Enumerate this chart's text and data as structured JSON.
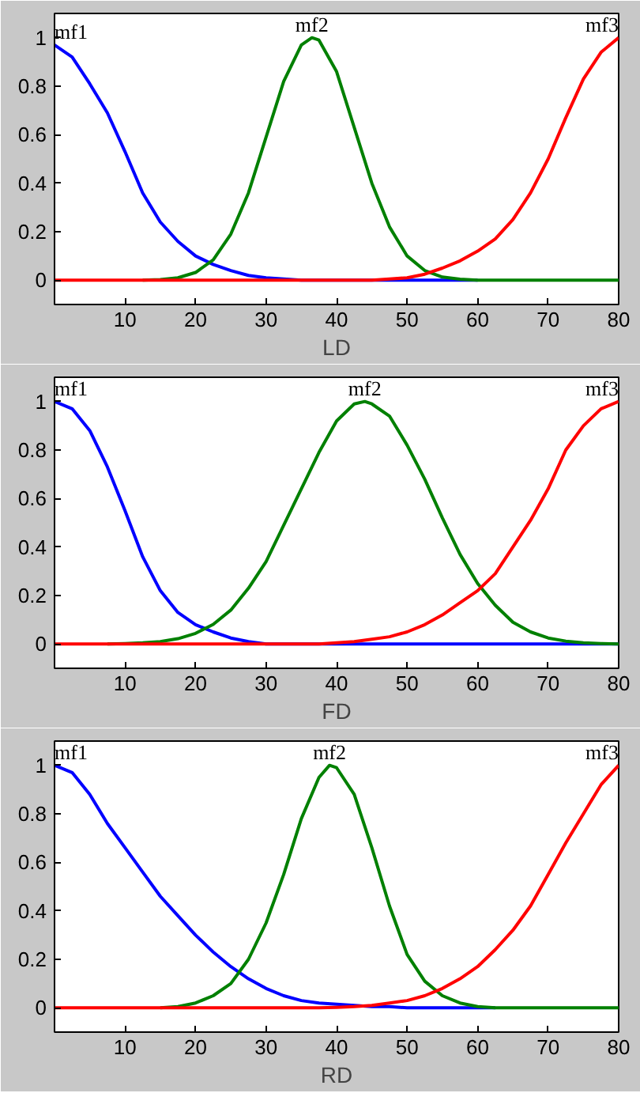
{
  "chart_data": [
    {
      "type": "line",
      "xlabel": "LD",
      "x": [
        0,
        2.5,
        5,
        7.5,
        10,
        12.5,
        15,
        17.5,
        20,
        22.5,
        25,
        27.5,
        30,
        32.5,
        35,
        37.5,
        40,
        42.5,
        45,
        47.5,
        50,
        52.5,
        55,
        57.5,
        60,
        62.5,
        65,
        67.5,
        70,
        72.5,
        75,
        77.5,
        80
      ],
      "xlim": [
        0,
        80
      ],
      "ylim": [
        -0.1,
        1.1
      ],
      "xticks": [
        10,
        20,
        30,
        40,
        50,
        60,
        70,
        80
      ],
      "yticks": [
        0,
        0.2,
        0.4,
        0.6,
        0.8,
        1
      ],
      "grid": false,
      "legend": false,
      "series": [
        {
          "name": "mf1",
          "color": "#0000ff",
          "values": [
            0.97,
            0.92,
            0.81,
            0.69,
            0.53,
            0.36,
            0.24,
            0.16,
            0.1,
            0.065,
            0.04,
            0.02,
            0.01,
            0.005,
            0,
            0,
            0,
            0,
            0,
            0,
            0,
            0,
            0,
            0,
            0,
            null,
            null,
            null,
            null,
            null,
            null,
            null,
            null
          ]
        },
        {
          "name": "mf2",
          "color": "#008000",
          "x": [
            12.5,
            15,
            17.5,
            20,
            22.5,
            25,
            27.5,
            30,
            32.5,
            35,
            36.5,
            37.5,
            40,
            42.5,
            45,
            47.5,
            50,
            52.5,
            55,
            57.5,
            60,
            62.5,
            65,
            67.5,
            70,
            72.5,
            75,
            77.5,
            80
          ],
          "values": [
            0,
            0.003,
            0.01,
            0.032,
            0.084,
            0.19,
            0.36,
            0.59,
            0.82,
            0.97,
            1,
            0.99,
            0.86,
            0.63,
            0.4,
            0.22,
            0.1,
            0.04,
            0.013,
            0.004,
            0,
            0,
            0,
            0,
            0,
            0,
            0,
            0,
            0
          ]
        },
        {
          "name": "mf3",
          "color": "#ff0000",
          "values": [
            0,
            0,
            0,
            0,
            0,
            0,
            0,
            0,
            0,
            0,
            0,
            0,
            0,
            0,
            0,
            0,
            0,
            0,
            0,
            0.005,
            0.01,
            0.025,
            0.05,
            0.08,
            0.12,
            0.17,
            0.25,
            0.36,
            0.5,
            0.67,
            0.83,
            0.94,
            1.0
          ]
        }
      ]
    },
    {
      "type": "line",
      "xlabel": "FD",
      "x": [
        0,
        2.5,
        5,
        7.5,
        10,
        12.5,
        15,
        17.5,
        20,
        22.5,
        25,
        27.5,
        30,
        32.5,
        35,
        37.5,
        40,
        42.5,
        45,
        47.5,
        50,
        52.5,
        55,
        57.5,
        60,
        62.5,
        65,
        67.5,
        70,
        72.5,
        75,
        77.5,
        80
      ],
      "xlim": [
        0,
        80
      ],
      "ylim": [
        -0.1,
        1.1
      ],
      "xticks": [
        10,
        20,
        30,
        40,
        50,
        60,
        70,
        80
      ],
      "yticks": [
        0,
        0.2,
        0.4,
        0.6,
        0.8,
        1
      ],
      "grid": false,
      "legend": false,
      "series": [
        {
          "name": "mf1",
          "color": "#0000ff",
          "values": [
            1.0,
            0.97,
            0.88,
            0.73,
            0.55,
            0.36,
            0.22,
            0.13,
            0.08,
            0.05,
            0.025,
            0.01,
            0,
            0,
            0,
            0,
            0,
            0,
            0,
            0,
            0,
            0,
            0,
            0,
            0,
            0,
            0,
            0,
            0,
            0,
            0,
            0,
            0
          ]
        },
        {
          "name": "mf2",
          "color": "#008000",
          "x": [
            7.5,
            10,
            12.5,
            15,
            17.5,
            20,
            22.5,
            25,
            27.5,
            30,
            32.5,
            35,
            37.5,
            40,
            42.5,
            44,
            45,
            47.5,
            50,
            52.5,
            55,
            57.5,
            60,
            62.5,
            65,
            67.5,
            70,
            72.5,
            75,
            77.5,
            80
          ],
          "values": [
            0,
            0.002,
            0.005,
            0.01,
            0.022,
            0.044,
            0.081,
            0.14,
            0.23,
            0.34,
            0.49,
            0.64,
            0.79,
            0.92,
            0.99,
            1.0,
            0.99,
            0.94,
            0.82,
            0.68,
            0.52,
            0.37,
            0.25,
            0.16,
            0.09,
            0.05,
            0.025,
            0.012,
            0.005,
            0.002,
            0
          ]
        },
        {
          "name": "mf3",
          "color": "#ff0000",
          "values": [
            0,
            0,
            0,
            0,
            0,
            0,
            0,
            0,
            0,
            0,
            0,
            0,
            0,
            0,
            0,
            0,
            0.005,
            0.01,
            0.02,
            0.03,
            0.05,
            0.08,
            0.12,
            0.17,
            0.22,
            0.29,
            0.4,
            0.51,
            0.64,
            0.8,
            0.9,
            0.97,
            1.0
          ]
        }
      ]
    },
    {
      "type": "line",
      "xlabel": "RD",
      "x": [
        0,
        2.5,
        5,
        7.5,
        10,
        12.5,
        15,
        17.5,
        20,
        22.5,
        25,
        27.5,
        30,
        32.5,
        35,
        37.5,
        40,
        42.5,
        45,
        47.5,
        50,
        52.5,
        55,
        57.5,
        60,
        62.5,
        65,
        67.5,
        70,
        72.5,
        75,
        77.5,
        80
      ],
      "xlim": [
        0,
        80
      ],
      "ylim": [
        -0.1,
        1.1
      ],
      "xticks": [
        10,
        20,
        30,
        40,
        50,
        60,
        70,
        80
      ],
      "yticks": [
        0,
        0.2,
        0.4,
        0.6,
        0.8,
        1
      ],
      "grid": false,
      "legend": false,
      "series": [
        {
          "name": "mf1",
          "color": "#0000ff",
          "values": [
            1.0,
            0.97,
            0.88,
            0.76,
            0.66,
            0.56,
            0.46,
            0.38,
            0.3,
            0.23,
            0.17,
            0.12,
            0.08,
            0.05,
            0.03,
            0.02,
            0.015,
            0.01,
            0.005,
            0.005,
            0,
            0,
            0,
            0,
            0,
            0,
            null,
            null,
            null,
            null,
            null,
            null,
            null
          ]
        },
        {
          "name": "mf2",
          "color": "#008000",
          "x": [
            15,
            17.5,
            20,
            22.5,
            25,
            27.5,
            30,
            32.5,
            35,
            37.5,
            39,
            40,
            42.5,
            45,
            47.5,
            50,
            52.5,
            55,
            57.5,
            60,
            62.5,
            65,
            67.5,
            70,
            72.5,
            75,
            77.5,
            80
          ],
          "values": [
            0,
            0.005,
            0.02,
            0.05,
            0.1,
            0.2,
            0.35,
            0.55,
            0.78,
            0.95,
            1.0,
            0.99,
            0.88,
            0.66,
            0.42,
            0.22,
            0.11,
            0.05,
            0.02,
            0.005,
            0,
            0,
            0,
            0,
            0,
            0,
            0,
            0
          ]
        },
        {
          "name": "mf3",
          "color": "#ff0000",
          "values": [
            0,
            0,
            0,
            0,
            0,
            0,
            0,
            0,
            0,
            0,
            0,
            0,
            0,
            0,
            0,
            0,
            0.002,
            0.005,
            0.01,
            0.02,
            0.03,
            0.05,
            0.08,
            0.12,
            0.17,
            0.24,
            0.32,
            0.42,
            0.55,
            0.68,
            0.8,
            0.92,
            1.0
          ]
        }
      ]
    }
  ]
}
